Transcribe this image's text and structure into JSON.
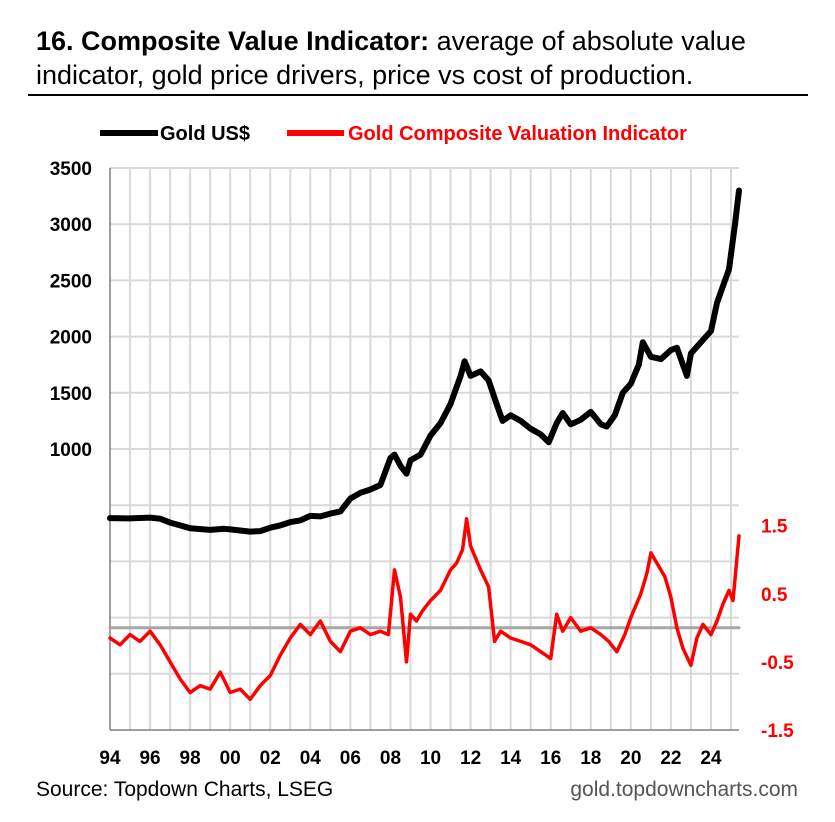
{
  "header": {
    "title_bold": "16. Composite Value Indicator:",
    "title_rest": " average of absolute value indicator, gold price drivers, price vs cost of production."
  },
  "footer": {
    "source": "Source: Topdown Charts, LSEG",
    "site": "gold.topdowncharts.com"
  },
  "colors": {
    "gold": "#000000",
    "indicator": "#ff0000",
    "zero_line": "#a6a6a6",
    "grid": "#d9d9d9"
  },
  "chart_data": {
    "type": "line",
    "title": "Composite Value Indicator",
    "legend": [
      "Gold US$",
      "Gold Composite Valuation Indicator"
    ],
    "legend_position": "top",
    "x_ticks": [
      "94",
      "96",
      "98",
      "00",
      "02",
      "04",
      "06",
      "08",
      "10",
      "12",
      "14",
      "16",
      "18",
      "20",
      "22",
      "24"
    ],
    "x_range": [
      1994,
      2025.4
    ],
    "y_left": {
      "ticks": [
        1000,
        1500,
        2000,
        2500,
        3000,
        3500
      ],
      "range": [
        -1500,
        3500
      ]
    },
    "y_right": {
      "ticks": [
        "1.5",
        "0.5",
        "-0.5",
        "-1.5"
      ],
      "tick_values": [
        1.5,
        0.5,
        -0.5,
        -1.5
      ],
      "range": [
        -1.5,
        6.75
      ]
    },
    "grid": true,
    "series": [
      {
        "name": "Gold US$",
        "axis": "left",
        "x": [
          1994,
          1995,
          1996,
          1996.5,
          1997,
          1997.5,
          1998,
          1999,
          1999.7,
          2000,
          2000.5,
          2001,
          2001.5,
          2002,
          2002.5,
          2003,
          2003.5,
          2004,
          2004.5,
          2005,
          2005.5,
          2006,
          2006.5,
          2007,
          2007.5,
          2008,
          2008.2,
          2008.5,
          2008.8,
          2009,
          2009.5,
          2010,
          2010.5,
          2011,
          2011.5,
          2011.7,
          2012,
          2012.5,
          2012.9,
          2013.3,
          2013.6,
          2014,
          2014.5,
          2015,
          2015.5,
          2015.9,
          2016.3,
          2016.6,
          2017,
          2017.5,
          2018,
          2018.5,
          2018.8,
          2019.2,
          2019.6,
          2020,
          2020.4,
          2020.6,
          2021,
          2021.5,
          2022,
          2022.3,
          2022.8,
          2023,
          2023.5,
          2024,
          2024.3,
          2024.6,
          2024.9,
          2025.2,
          2025.4
        ],
        "values": [
          385,
          383,
          390,
          380,
          345,
          320,
          295,
          280,
          290,
          285,
          275,
          265,
          270,
          300,
          320,
          350,
          365,
          405,
          400,
          425,
          445,
          560,
          610,
          640,
          680,
          920,
          950,
          850,
          780,
          900,
          950,
          1120,
          1230,
          1400,
          1650,
          1780,
          1650,
          1690,
          1610,
          1400,
          1250,
          1300,
          1250,
          1180,
          1130,
          1060,
          1230,
          1320,
          1220,
          1260,
          1330,
          1220,
          1200,
          1300,
          1500,
          1580,
          1750,
          1950,
          1820,
          1800,
          1880,
          1900,
          1650,
          1850,
          1950,
          2050,
          2300,
          2450,
          2600,
          3000,
          3300
        ]
      },
      {
        "name": "Gold Composite Valuation Indicator",
        "axis": "right",
        "x": [
          1994,
          1994.5,
          1995,
          1995.5,
          1996,
          1996.5,
          1997,
          1997.5,
          1998,
          1998.5,
          1999,
          1999.5,
          2000,
          2000.5,
          2001,
          2001.5,
          2002,
          2002.5,
          2003,
          2003.5,
          2004,
          2004.5,
          2005,
          2005.5,
          2006,
          2006.5,
          2007,
          2007.5,
          2007.9,
          2008.2,
          2008.5,
          2008.8,
          2009,
          2009.3,
          2009.6,
          2010,
          2010.5,
          2011,
          2011.3,
          2011.6,
          2011.8,
          2012,
          2012.5,
          2012.9,
          2013.2,
          2013.5,
          2014,
          2014.5,
          2015,
          2015.5,
          2016,
          2016.3,
          2016.6,
          2017,
          2017.5,
          2018,
          2018.5,
          2018.9,
          2019.3,
          2019.7,
          2020,
          2020.5,
          2020.8,
          2021,
          2021.3,
          2021.7,
          2022,
          2022.3,
          2022.6,
          2023,
          2023.3,
          2023.6,
          2024,
          2024.3,
          2024.6,
          2024.9,
          2025.1,
          2025.4
        ],
        "values": [
          -0.15,
          -0.25,
          -0.1,
          -0.2,
          -0.05,
          -0.25,
          -0.5,
          -0.75,
          -0.95,
          -0.85,
          -0.9,
          -0.65,
          -0.95,
          -0.9,
          -1.05,
          -0.85,
          -0.7,
          -0.4,
          -0.15,
          0.05,
          -0.1,
          0.1,
          -0.2,
          -0.35,
          -0.05,
          0.0,
          -0.1,
          -0.05,
          -0.1,
          0.85,
          0.45,
          -0.5,
          0.2,
          0.1,
          0.25,
          0.4,
          0.55,
          0.85,
          0.95,
          1.15,
          1.6,
          1.2,
          0.85,
          0.6,
          -0.2,
          -0.05,
          -0.15,
          -0.2,
          -0.25,
          -0.35,
          -0.45,
          0.2,
          -0.05,
          0.15,
          -0.05,
          0.0,
          -0.1,
          -0.2,
          -0.35,
          -0.1,
          0.15,
          0.5,
          0.8,
          1.1,
          0.95,
          0.75,
          0.45,
          0.0,
          -0.3,
          -0.55,
          -0.15,
          0.05,
          -0.1,
          0.1,
          0.35,
          0.55,
          0.4,
          1.35
        ]
      },
      {
        "name": "zero line",
        "axis": "right",
        "x": [
          1994,
          2025.4
        ],
        "values": [
          0,
          0
        ]
      }
    ]
  }
}
